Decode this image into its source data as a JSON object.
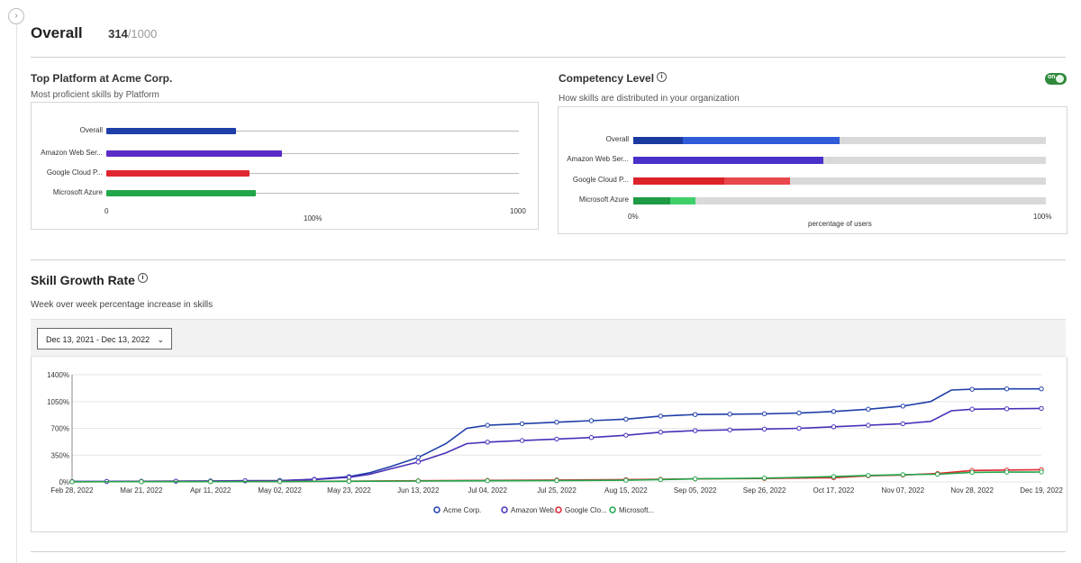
{
  "header": {
    "title": "Overall",
    "score": "314",
    "total": "/1000",
    "nav_icon": "chevron-right-icon"
  },
  "top_platform": {
    "title": "Top Platform at Acme Corp.",
    "subtitle": "Most proficient skills by Platform",
    "axis_ticks": [
      "0",
      "1000"
    ],
    "axis_center_label": "100%",
    "chart_data": {
      "type": "bar",
      "categories": [
        "Overall",
        "Amazon Web Ser...",
        "Google Cloud P...",
        "Microsoft Azure"
      ],
      "values": [
        314,
        425,
        347,
        362
      ],
      "colors": [
        "#1f3fa8",
        "#5b2bc6",
        "#e0262e",
        "#22a64a"
      ],
      "xlim": [
        0,
        1000
      ]
    }
  },
  "competency": {
    "title": "Competency Level",
    "subtitle": "How skills are distributed in your organization",
    "toggle_label": "on",
    "axis_ticks": [
      "0%",
      "100%"
    ],
    "xlabel": "percentage of users",
    "chart_data": {
      "type": "bar",
      "categories": [
        "Overall",
        "Amazon Web Ser...",
        "Google Cloud P...",
        "Microsoft Azure"
      ],
      "series": [
        {
          "values": [
            12,
            0,
            22,
            9
          ]
        },
        {
          "values": [
            38,
            46,
            16,
            6
          ]
        }
      ],
      "colors": [
        [
          "#1a3aa0",
          "#2f5bd9"
        ],
        [
          "#4a30c9",
          "#4a30c9"
        ],
        [
          "#dc2329",
          "#e8474c"
        ],
        [
          "#1f9a45",
          "#3fcf6a"
        ]
      ],
      "xlim": [
        0,
        100
      ]
    }
  },
  "skill_growth": {
    "title": "Skill Growth Rate",
    "subtitle": "Week over week percentage increase in skills",
    "date_range": "Dec 13, 2021 - Dec 13, 2022",
    "chart_data": {
      "type": "line",
      "x_labels": [
        "Feb 28, 2022",
        "Mar 21, 2022",
        "Apr 11, 2022",
        "May 02, 2022",
        "May 23, 2022",
        "Jun 13, 2022",
        "Jul 04, 2022",
        "Jul 25, 2022",
        "Aug 15, 2022",
        "Sep 05, 2022",
        "Sep 26, 2022",
        "Oct 17, 2022",
        "Nov 07, 2022",
        "Nov 28, 2022",
        "Dec 19, 2022"
      ],
      "y_ticks": [
        "0%",
        "350%",
        "700%",
        "1050%",
        "1400%"
      ],
      "ylim": [
        0,
        1400
      ],
      "legend": [
        "Acme Corp.",
        "Amazon Web...",
        "Google Clo...",
        "Microsoft..."
      ],
      "series": [
        {
          "name": "Acme Corp.",
          "color": "#1f3fa8",
          "points": [
            [
              0,
              5
            ],
            [
              0.5,
              6
            ],
            [
              1,
              8
            ],
            [
              1.5,
              10
            ],
            [
              2,
              12
            ],
            [
              2.5,
              15
            ],
            [
              3,
              18
            ],
            [
              3.5,
              35
            ],
            [
              4,
              70
            ],
            [
              4.3,
              120
            ],
            [
              4.6,
              200
            ],
            [
              5,
              320
            ],
            [
              5.4,
              500
            ],
            [
              5.7,
              700
            ],
            [
              6,
              740
            ],
            [
              6.5,
              760
            ],
            [
              7,
              780
            ],
            [
              7.5,
              800
            ],
            [
              8,
              820
            ],
            [
              8.5,
              860
            ],
            [
              9,
              880
            ],
            [
              9.5,
              885
            ],
            [
              10,
              890
            ],
            [
              10.5,
              900
            ],
            [
              11,
              920
            ],
            [
              11.5,
              950
            ],
            [
              12,
              990
            ],
            [
              12.4,
              1050
            ],
            [
              12.7,
              1200
            ],
            [
              13,
              1210
            ],
            [
              13.5,
              1215
            ],
            [
              14,
              1215
            ]
          ]
        },
        {
          "name": "Amazon Web...",
          "color": "#4b2fb8",
          "points": [
            [
              0,
              5
            ],
            [
              0.5,
              6
            ],
            [
              1,
              8
            ],
            [
              1.5,
              10
            ],
            [
              2,
              12
            ],
            [
              2.5,
              15
            ],
            [
              3,
              18
            ],
            [
              3.5,
              30
            ],
            [
              4,
              60
            ],
            [
              4.3,
              100
            ],
            [
              4.6,
              170
            ],
            [
              5,
              260
            ],
            [
              5.4,
              380
            ],
            [
              5.7,
              500
            ],
            [
              6,
              520
            ],
            [
              6.5,
              540
            ],
            [
              7,
              560
            ],
            [
              7.5,
              580
            ],
            [
              8,
              610
            ],
            [
              8.5,
              650
            ],
            [
              9,
              670
            ],
            [
              9.5,
              680
            ],
            [
              10,
              690
            ],
            [
              10.5,
              700
            ],
            [
              11,
              720
            ],
            [
              11.5,
              740
            ],
            [
              12,
              760
            ],
            [
              12.4,
              790
            ],
            [
              12.7,
              930
            ],
            [
              13,
              950
            ],
            [
              13.5,
              955
            ],
            [
              14,
              960
            ]
          ]
        },
        {
          "name": "Google Clo...",
          "color": "#e0262e",
          "points": [
            [
              0,
              2
            ],
            [
              1,
              3
            ],
            [
              2,
              4
            ],
            [
              3,
              5
            ],
            [
              4,
              10
            ],
            [
              5,
              15
            ],
            [
              6,
              20
            ],
            [
              7,
              25
            ],
            [
              8,
              30
            ],
            [
              8.5,
              35
            ],
            [
              9,
              40
            ],
            [
              10,
              45
            ],
            [
              11,
              55
            ],
            [
              11.5,
              80
            ],
            [
              12,
              90
            ],
            [
              12.5,
              110
            ],
            [
              13,
              150
            ],
            [
              13.5,
              155
            ],
            [
              14,
              160
            ]
          ]
        },
        {
          "name": "Microsoft...",
          "color": "#22a64a",
          "points": [
            [
              0,
              2
            ],
            [
              1,
              3
            ],
            [
              2,
              4
            ],
            [
              3,
              5
            ],
            [
              4,
              8
            ],
            [
              5,
              12
            ],
            [
              6,
              15
            ],
            [
              7,
              18
            ],
            [
              8,
              22
            ],
            [
              8.5,
              30
            ],
            [
              9,
              40
            ],
            [
              10,
              50
            ],
            [
              11,
              70
            ],
            [
              11.5,
              85
            ],
            [
              12,
              95
            ],
            [
              12.5,
              100
            ],
            [
              13,
              125
            ],
            [
              13.5,
              128
            ],
            [
              14,
              130
            ]
          ]
        }
      ]
    }
  }
}
